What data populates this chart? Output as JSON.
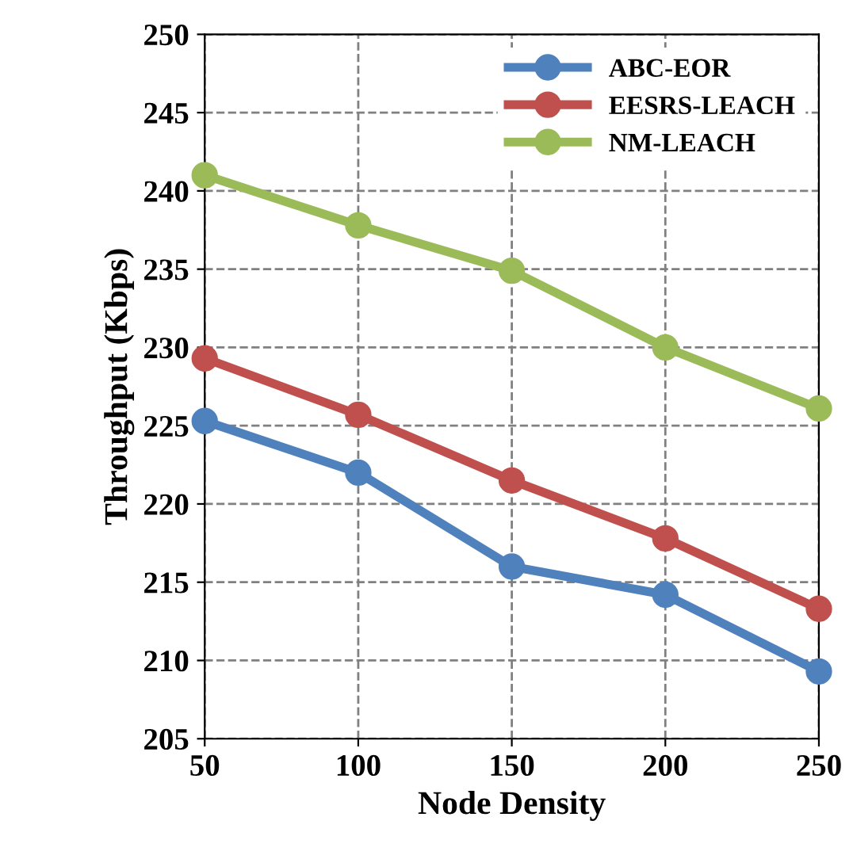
{
  "chart_data": {
    "type": "line",
    "xlabel": "Node Density",
    "ylabel": "Throughput (Kbps)",
    "x": [
      50,
      100,
      150,
      200,
      250
    ],
    "series": [
      {
        "name": "ABC-EOR",
        "color": "#4f81bd",
        "values": [
          225.3,
          222,
          216,
          214.2,
          209.3
        ]
      },
      {
        "name": "EESRS-LEACH",
        "color": "#c0504d",
        "values": [
          229.3,
          225.7,
          221.5,
          217.8,
          213.3
        ]
      },
      {
        "name": "NM-LEACH",
        "color": "#9bbb59",
        "values": [
          241,
          237.8,
          234.9,
          230,
          226.1
        ]
      }
    ],
    "xlim": [
      50,
      250
    ],
    "xticks": [
      50,
      100,
      150,
      200,
      250
    ],
    "ylim": [
      205,
      250
    ],
    "yticks": [
      205,
      210,
      215,
      220,
      225,
      230,
      235,
      240,
      245,
      250
    ],
    "grid": true,
    "legend": "top right",
    "marker": "circle",
    "line_style": "solid"
  }
}
